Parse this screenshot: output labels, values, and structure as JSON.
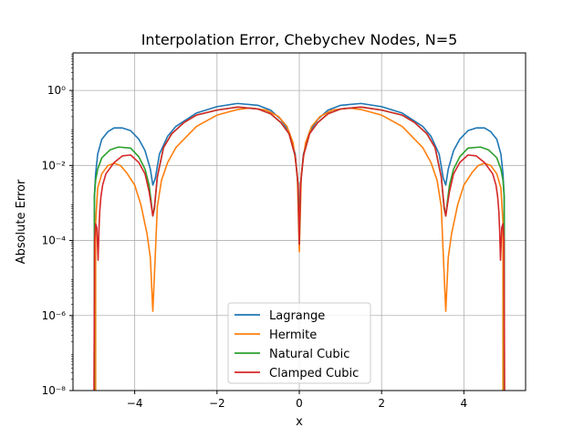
{
  "chart_data": {
    "type": "line",
    "title": "Interpolation Error, Chebychev Nodes, N=5",
    "xlabel": "x",
    "ylabel": "Absolute Error",
    "xlim": [
      -5.5,
      5.5
    ],
    "ylim_log10": [
      -8,
      1
    ],
    "yscale": "log",
    "grid": true,
    "legend_position": "lower center",
    "x_ticks": [
      -4,
      -2,
      0,
      2,
      4
    ],
    "x_tick_labels": [
      "−4",
      "−2",
      "0",
      "2",
      "4"
    ],
    "y_ticks_log10": [
      -8,
      -6,
      -4,
      -2,
      0
    ],
    "y_tick_labels": [
      "10⁻⁸",
      "10⁻⁶",
      "10⁻⁴",
      "10⁻²",
      "10⁰"
    ],
    "series": [
      {
        "name": "Lagrange",
        "color": "#1f77b4",
        "x": [
          -4.98,
          -4.95,
          -4.9,
          -4.8,
          -4.65,
          -4.5,
          -4.3,
          -4.1,
          -3.9,
          -3.75,
          -3.62,
          -3.56,
          -3.5,
          -3.4,
          -3.2,
          -3.0,
          -2.5,
          -2.0,
          -1.5,
          -1.0,
          -0.7,
          -0.45,
          -0.25,
          -0.1,
          -0.03,
          0.0
        ],
        "y": [
          0.0015,
          0.006,
          0.02,
          0.05,
          0.08,
          0.1,
          0.1,
          0.085,
          0.05,
          0.025,
          0.008,
          0.003,
          0.0045,
          0.02,
          0.06,
          0.11,
          0.25,
          0.37,
          0.45,
          0.4,
          0.3,
          0.17,
          0.08,
          0.02,
          0.003,
          8e-05
        ]
      },
      {
        "name": "Hermite",
        "color": "#ff7f0e",
        "x": [
          -4.95,
          -4.9,
          -4.8,
          -4.65,
          -4.5,
          -4.35,
          -4.2,
          -4.0,
          -3.85,
          -3.7,
          -3.62,
          -3.56,
          -3.5,
          -3.45,
          -3.35,
          -3.2,
          -3.0,
          -2.5,
          -2.0,
          -1.5,
          -1.2,
          -0.8,
          -0.5,
          -0.3,
          -0.15,
          -0.05,
          0.0
        ],
        "y": [
          0.0003,
          0.0025,
          0.006,
          0.01,
          0.0115,
          0.01,
          0.0065,
          0.003,
          0.0009,
          0.00015,
          3.5e-05,
          1.3e-06,
          4e-05,
          0.0008,
          0.004,
          0.012,
          0.03,
          0.11,
          0.22,
          0.31,
          0.34,
          0.3,
          0.2,
          0.11,
          0.04,
          0.006,
          5e-05
        ]
      },
      {
        "name": "Natural Cubic",
        "color": "#2ca02c",
        "x": [
          -4.98,
          -4.95,
          -4.9,
          -4.8,
          -4.6,
          -4.4,
          -4.1,
          -3.9,
          -3.75,
          -3.65,
          -3.6,
          -3.56,
          -3.52,
          -3.45,
          -3.3,
          -3.1,
          -2.8,
          -2.5,
          -2.0,
          -1.5,
          -1.0,
          -0.7,
          -0.45,
          -0.25,
          -0.1,
          -0.03,
          0.0
        ],
        "y": [
          0.0015,
          0.004,
          0.008,
          0.016,
          0.026,
          0.031,
          0.029,
          0.017,
          0.008,
          0.003,
          0.0011,
          0.00045,
          0.0007,
          0.005,
          0.03,
          0.07,
          0.14,
          0.22,
          0.3,
          0.36,
          0.32,
          0.24,
          0.14,
          0.07,
          0.018,
          0.003,
          8e-05
        ]
      },
      {
        "name": "Clamped Cubic",
        "color": "#d62728",
        "x": [
          -4.99,
          -4.975,
          -4.95,
          -4.92,
          -4.89,
          -4.87,
          -4.85,
          -4.82,
          -4.78,
          -4.7,
          -4.5,
          -4.3,
          -4.1,
          -3.9,
          -3.75,
          -3.65,
          -3.6,
          -3.56,
          -3.52,
          -3.45,
          -3.3,
          -3.1,
          -2.8,
          -2.5,
          -2.0,
          -1.5,
          -1.0,
          -0.7,
          -0.45,
          -0.25,
          -0.1,
          -0.03,
          0.0
        ],
        "y": [
          1e-08,
          0.0001,
          0.00028,
          0.00022,
          3e-05,
          0.00018,
          0.0006,
          0.0015,
          0.003,
          0.006,
          0.012,
          0.018,
          0.019,
          0.012,
          0.006,
          0.002,
          0.0009,
          0.00045,
          0.0008,
          0.005,
          0.03,
          0.07,
          0.14,
          0.22,
          0.3,
          0.36,
          0.32,
          0.24,
          0.14,
          0.07,
          0.018,
          0.003,
          8e-05
        ]
      }
    ]
  }
}
